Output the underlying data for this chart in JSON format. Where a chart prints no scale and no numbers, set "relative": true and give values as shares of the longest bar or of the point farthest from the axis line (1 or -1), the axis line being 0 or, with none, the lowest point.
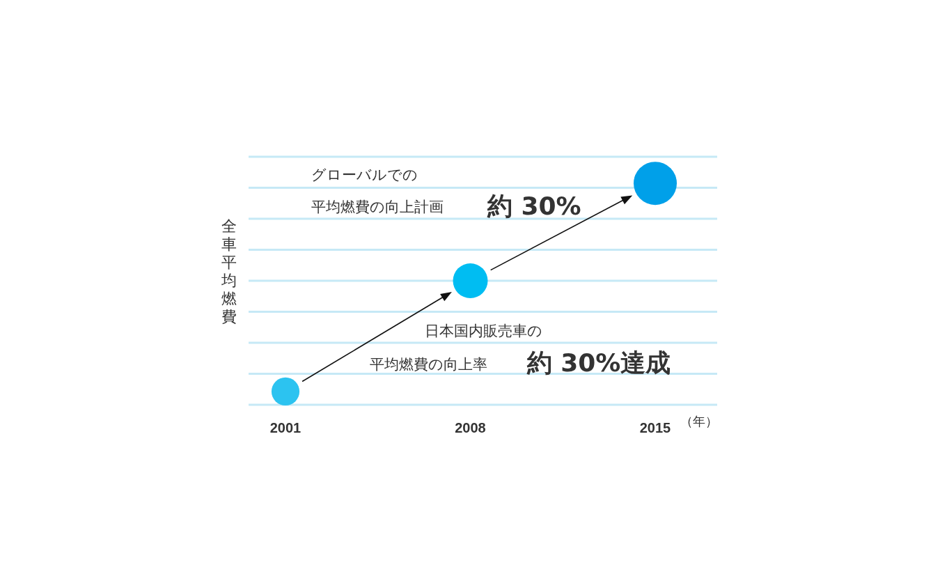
{
  "chart_data": {
    "type": "bubble",
    "relative": true,
    "xlabel": "（年）",
    "ylabel": "全車平均燃費",
    "categories": [
      "2001",
      "2008",
      "2015"
    ],
    "values": [
      0.06,
      0.56,
      1
    ],
    "sizes": [
      0.42,
      0.65,
      1
    ],
    "colors": [
      "#2cc3f0",
      "#00bdf2",
      "#00a0e9"
    ],
    "legend": false,
    "ref_lines": [
      {
        "axis": "y",
        "value": 0.14,
        "color": "#c6e9f6"
      },
      {
        "axis": "y",
        "value": 0.28,
        "color": "#c6e9f6"
      },
      {
        "axis": "y",
        "value": 0.42,
        "color": "#c6e9f6"
      },
      {
        "axis": "y",
        "value": 0.56,
        "color": "#c6e9f6"
      },
      {
        "axis": "y",
        "value": 0.7,
        "color": "#c6e9f6"
      },
      {
        "axis": "y",
        "value": 0.84,
        "color": "#c6e9f6"
      },
      {
        "axis": "y",
        "value": 0.98,
        "color": "#c6e9f6"
      }
    ],
    "annotations": [
      "グローバルでの",
      "平均燃費の向上計画",
      "約 30%",
      "日本国内販売車の",
      "平均燃費の向上率",
      "約 30%達成"
    ]
  }
}
